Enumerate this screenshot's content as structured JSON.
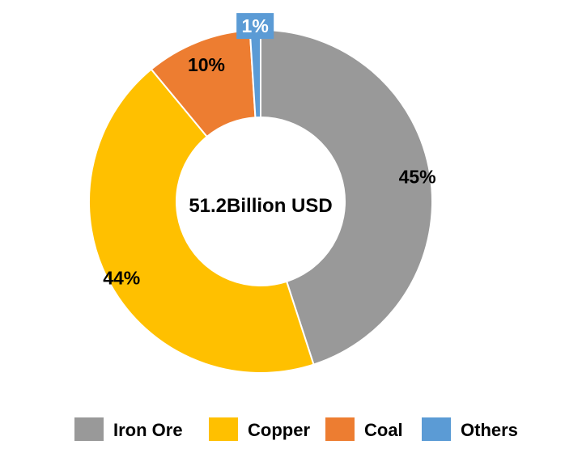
{
  "chart_data": {
    "type": "pie",
    "donut": true,
    "center_text": "51.2Billion USD",
    "categories": [
      "Iron Ore",
      "Copper",
      "Coal",
      "Others"
    ],
    "values": [
      45,
      44,
      10,
      1
    ],
    "data_labels": [
      "45%",
      "44%",
      "10%",
      "1%"
    ],
    "colors": [
      "#999999",
      "#FFC000",
      "#ED7D31",
      "#5B9BD5"
    ],
    "legend_position": "bottom",
    "start_angle": "top",
    "direction": "clockwise"
  }
}
